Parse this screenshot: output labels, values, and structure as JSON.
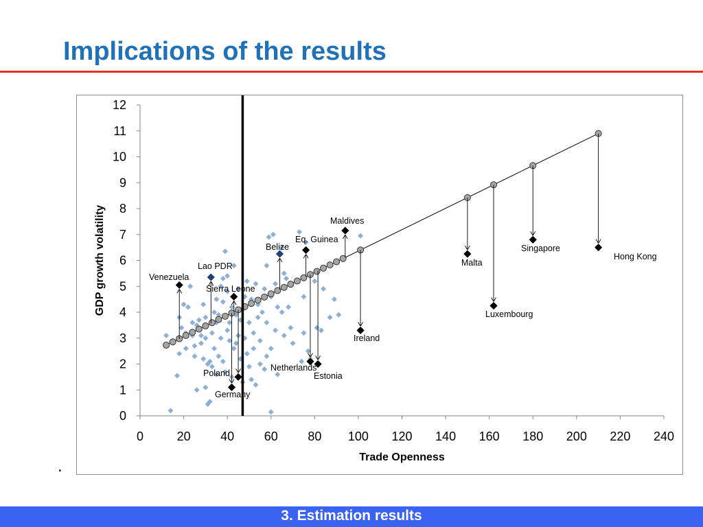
{
  "slide": {
    "title": "Implications of the results",
    "bullet": ".",
    "footer": "3. Estimation results"
  },
  "colors": {
    "title": "#1f72b8",
    "rule": "#e8302a",
    "footer_bar": "#3a63f2",
    "scatter": "#8eb0d5",
    "highlight_blue": "#1f3f7a",
    "marker": "#000000",
    "fitted": "#a6a6a6"
  },
  "chart_data": {
    "type": "scatter",
    "title": "",
    "xlabel": "Trade Openness",
    "ylabel": "GDP growth volatility",
    "xlim": [
      0,
      240
    ],
    "ylim": [
      0,
      12
    ],
    "xticks": [
      0,
      20,
      40,
      60,
      80,
      100,
      120,
      140,
      160,
      180,
      200,
      220,
      240
    ],
    "yticks": [
      0,
      1,
      2,
      3,
      4,
      5,
      6,
      7,
      8,
      9,
      10,
      11,
      12
    ],
    "vertical_line_x": 47,
    "fitted_line": {
      "x": [
        12,
        210
      ],
      "y": [
        2.73,
        10.9
      ]
    },
    "fitted_points_x": [
      12,
      15,
      18,
      21,
      24,
      27,
      30,
      33,
      36,
      39,
      42,
      45,
      48,
      51,
      54,
      57,
      60,
      63,
      66,
      69,
      72,
      75,
      78,
      81,
      84,
      87,
      90,
      93,
      101,
      150,
      162,
      180,
      210
    ],
    "scatter_points": [
      [
        12,
        3.1
      ],
      [
        14,
        0.2
      ],
      [
        15,
        2.9
      ],
      [
        17,
        1.55
      ],
      [
        18,
        2.4
      ],
      [
        18,
        3.8
      ],
      [
        19,
        3.4
      ],
      [
        20,
        4.3
      ],
      [
        21,
        2.6
      ],
      [
        21,
        3.2
      ],
      [
        22,
        4.2
      ],
      [
        23,
        5.0
      ],
      [
        24,
        3.1
      ],
      [
        24,
        3.6
      ],
      [
        25,
        2.7
      ],
      [
        25,
        2.3
      ],
      [
        26,
        3.5
      ],
      [
        26,
        1.0
      ],
      [
        27,
        3.7
      ],
      [
        28,
        2.8
      ],
      [
        28,
        3.1
      ],
      [
        29,
        2.2
      ],
      [
        29,
        4.3
      ],
      [
        30,
        3.0
      ],
      [
        30,
        3.8
      ],
      [
        30,
        1.1
      ],
      [
        31,
        0.45
      ],
      [
        31,
        2.0
      ],
      [
        32,
        0.55
      ],
      [
        32,
        2.1
      ],
      [
        33,
        1.9
      ],
      [
        33,
        3.2
      ],
      [
        34,
        4.0
      ],
      [
        34,
        2.6
      ],
      [
        35,
        1.6
      ],
      [
        35,
        3.6
      ],
      [
        35,
        4.5
      ],
      [
        36,
        2.3
      ],
      [
        36,
        3.9
      ],
      [
        37,
        5.0
      ],
      [
        37,
        3.0
      ],
      [
        38,
        2.1
      ],
      [
        38,
        4.4
      ],
      [
        38,
        5.3
      ],
      [
        39,
        6.35
      ],
      [
        39,
        1.7
      ],
      [
        40,
        3.3
      ],
      [
        40,
        4.8
      ],
      [
        40,
        5.4
      ],
      [
        41,
        2.9
      ],
      [
        41,
        3.6
      ],
      [
        42,
        1.5
      ],
      [
        42,
        4.2
      ],
      [
        43,
        5.8
      ],
      [
        43,
        2.6
      ],
      [
        44,
        3.9
      ],
      [
        44,
        2.8
      ],
      [
        45,
        3.1
      ],
      [
        45,
        4.9
      ],
      [
        46,
        2.2
      ],
      [
        46,
        3.7
      ],
      [
        47,
        1.3
      ],
      [
        47,
        4.1
      ],
      [
        48,
        3.0
      ],
      [
        48,
        4.6
      ],
      [
        49,
        2.4
      ],
      [
        49,
        5.2
      ],
      [
        50,
        1.9
      ],
      [
        50,
        3.6
      ],
      [
        51,
        4.5
      ],
      [
        51,
        1.4
      ],
      [
        52,
        3.2
      ],
      [
        52,
        2.6
      ],
      [
        53,
        5.1
      ],
      [
        53,
        1.2
      ],
      [
        54,
        3.8
      ],
      [
        54,
        4.3
      ],
      [
        55,
        2.0
      ],
      [
        55,
        2.9
      ],
      [
        56,
        4.0
      ],
      [
        57,
        1.8
      ],
      [
        57,
        4.9
      ],
      [
        58,
        3.6
      ],
      [
        58,
        5.8
      ],
      [
        58,
        2.3
      ],
      [
        59,
        6.9
      ],
      [
        60,
        0.15
      ],
      [
        60,
        2.6
      ],
      [
        60,
        4.6
      ],
      [
        61,
        7.0
      ],
      [
        62,
        3.3
      ],
      [
        62,
        5.1
      ],
      [
        63,
        1.6
      ],
      [
        63,
        4.2
      ],
      [
        65,
        6.5
      ],
      [
        65,
        4.0
      ],
      [
        66,
        3.1
      ],
      [
        66,
        5.5
      ],
      [
        67,
        5.3
      ],
      [
        68,
        4.2
      ],
      [
        69,
        3.4
      ],
      [
        70,
        2.8
      ],
      [
        73,
        7.1
      ],
      [
        74,
        2.1
      ],
      [
        75,
        4.6
      ],
      [
        75,
        3.2
      ],
      [
        76,
        6.7
      ],
      [
        77,
        2.5
      ],
      [
        78,
        2.2
      ],
      [
        80,
        5.2
      ],
      [
        81,
        3.4
      ],
      [
        83,
        3.3
      ],
      [
        84,
        4.9
      ],
      [
        87,
        3.8
      ],
      [
        89,
        4.5
      ],
      [
        91,
        3.9
      ],
      [
        101,
        6.95
      ]
    ],
    "highlighted_blue": [
      {
        "x": 32.5,
        "y": 5.35
      },
      {
        "x": 64,
        "y": 6.25
      }
    ],
    "countries": [
      {
        "label": "Venezuela",
        "x": 18,
        "y": 5.05,
        "fit": 2.97
      },
      {
        "label": "Lao PDR",
        "x": 32.5,
        "y": 5.35,
        "fit": 3.57
      },
      {
        "label": "Sierra Leone",
        "x": 43,
        "y": 4.6,
        "fit": 4.01
      },
      {
        "label": "Poland",
        "x": 45,
        "y": 1.5,
        "fit": 4.09
      },
      {
        "label": "Germany",
        "x": 42,
        "y": 1.1,
        "fit": 3.97
      },
      {
        "label": "Belize",
        "x": 64,
        "y": 6.25,
        "fit": 4.87
      },
      {
        "label": "Eq. Guinea",
        "x": 76,
        "y": 6.4,
        "fit": 5.37
      },
      {
        "label": "Maldives",
        "x": 94,
        "y": 7.15,
        "fit": 6.11
      },
      {
        "label": "Netherlands",
        "x": 78,
        "y": 2.1,
        "fit": 5.45
      },
      {
        "label": "Estonia",
        "x": 81.5,
        "y": 2.0,
        "fit": 5.6
      },
      {
        "label": "Ireland",
        "x": 101,
        "y": 3.3,
        "fit": 6.4
      },
      {
        "label": "Malta",
        "x": 150,
        "y": 6.25,
        "fit": 8.42
      },
      {
        "label": "Luxembourg",
        "x": 162,
        "y": 4.25,
        "fit": 8.92
      },
      {
        "label": "Singapore",
        "x": 180,
        "y": 6.8,
        "fit": 9.66
      },
      {
        "label": "Hong Kong",
        "x": 210,
        "y": 6.5,
        "fit": 10.9
      }
    ]
  }
}
